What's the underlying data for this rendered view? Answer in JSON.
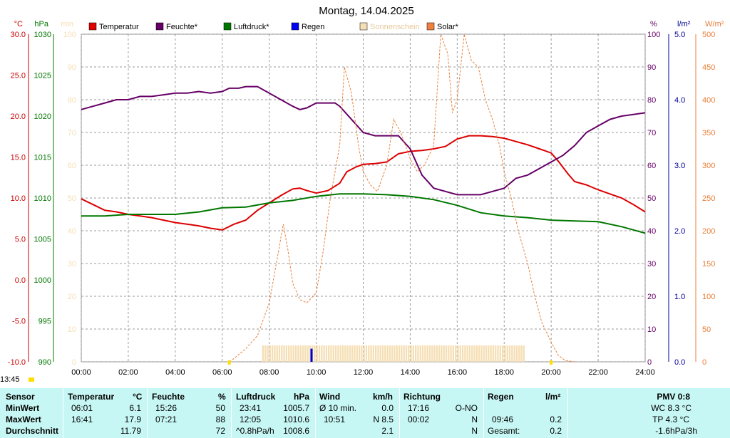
{
  "chart_data": {
    "type": "line",
    "title": "Montag, 14.04.2025",
    "x_ticks": [
      "00:00",
      "02:00",
      "04:00",
      "06:00",
      "08:00",
      "10:00",
      "12:00",
      "14:00",
      "16:00",
      "18:00",
      "20:00",
      "22:00",
      "24:00"
    ],
    "xlim": [
      0,
      24
    ],
    "grid": true,
    "legend_position": "top",
    "axes": {
      "temp": {
        "unit": "°C",
        "ylim": [
          -10,
          30
        ],
        "ticks": [
          "30.0",
          "25.0",
          "20.0",
          "15.0",
          "10.0",
          "5.0",
          "0.0",
          "-5.0",
          "-10.0"
        ],
        "color": "#cc0000"
      },
      "pressure": {
        "unit": "hPa",
        "ylim": [
          990,
          1030
        ],
        "ticks": [
          "1030",
          "1025",
          "1020",
          "1015",
          "1010",
          "1005",
          "1000",
          "995",
          "990"
        ],
        "color": "#007700"
      },
      "sunshine_min": {
        "unit": "min",
        "ylim": [
          0,
          100
        ],
        "ticks": [
          "100",
          "90",
          "80",
          "70",
          "60",
          "50",
          "40",
          "30",
          "20",
          "10",
          "0"
        ],
        "color": "#f5deb3"
      },
      "humidity": {
        "unit": "%",
        "ylim": [
          0,
          100
        ],
        "ticks": [
          "100",
          "90",
          "80",
          "70",
          "60",
          "50",
          "40",
          "30",
          "20",
          "10",
          "0"
        ],
        "color": "#660066"
      },
      "rain": {
        "unit": "l/m²",
        "ylim": [
          0,
          5
        ],
        "ticks": [
          "5.0",
          "4.0",
          "3.0",
          "2.0",
          "1.0",
          "0.0"
        ],
        "color": "#000099"
      },
      "solar": {
        "unit": "W/m²",
        "ylim": [
          0,
          500
        ],
        "ticks": [
          "500",
          "450",
          "400",
          "350",
          "300",
          "250",
          "200",
          "150",
          "100",
          "50",
          "0"
        ],
        "color": "#e8803a"
      }
    },
    "series": [
      {
        "name": "Temperatur",
        "key": "temp",
        "color": "#dd0000",
        "points": [
          [
            0,
            9.9
          ],
          [
            0.5,
            9.2
          ],
          [
            1,
            8.5
          ],
          [
            1.5,
            8.3
          ],
          [
            2,
            8.0
          ],
          [
            2.5,
            7.8
          ],
          [
            3,
            7.6
          ],
          [
            3.5,
            7.3
          ],
          [
            4,
            7.0
          ],
          [
            4.5,
            6.8
          ],
          [
            5,
            6.6
          ],
          [
            5.5,
            6.3
          ],
          [
            6,
            6.1
          ],
          [
            6.5,
            6.8
          ],
          [
            7,
            7.3
          ],
          [
            7.5,
            8.5
          ],
          [
            8,
            9.4
          ],
          [
            8.5,
            10.3
          ],
          [
            9,
            11.1
          ],
          [
            9.3,
            11.2
          ],
          [
            9.6,
            10.9
          ],
          [
            10,
            10.6
          ],
          [
            10.5,
            10.9
          ],
          [
            11,
            11.8
          ],
          [
            11.3,
            13.2
          ],
          [
            11.7,
            13.8
          ],
          [
            12,
            14.1
          ],
          [
            12.5,
            14.2
          ],
          [
            13,
            14.4
          ],
          [
            13.5,
            15.4
          ],
          [
            14,
            15.7
          ],
          [
            14.5,
            15.8
          ],
          [
            15,
            16.0
          ],
          [
            15.5,
            16.3
          ],
          [
            16,
            17.2
          ],
          [
            16.5,
            17.6
          ],
          [
            17,
            17.6
          ],
          [
            17.5,
            17.5
          ],
          [
            18,
            17.3
          ],
          [
            18.5,
            16.9
          ],
          [
            19,
            16.5
          ],
          [
            19.5,
            16.0
          ],
          [
            20,
            15.5
          ],
          [
            20.3,
            14.5
          ],
          [
            20.7,
            13.0
          ],
          [
            21,
            12.0
          ],
          [
            21.5,
            11.6
          ],
          [
            22,
            11.0
          ],
          [
            22.5,
            10.5
          ],
          [
            23,
            10.0
          ],
          [
            23.5,
            9.2
          ],
          [
            24,
            8.3
          ]
        ]
      },
      {
        "name": "Feuchte*",
        "key": "humidity",
        "color": "#660066",
        "points": [
          [
            0,
            77
          ],
          [
            0.5,
            78
          ],
          [
            1,
            79
          ],
          [
            1.5,
            80
          ],
          [
            2,
            80
          ],
          [
            2.5,
            81
          ],
          [
            3,
            81
          ],
          [
            3.5,
            81.5
          ],
          [
            4,
            82
          ],
          [
            4.5,
            82
          ],
          [
            5,
            82.5
          ],
          [
            5.5,
            82
          ],
          [
            6,
            82.5
          ],
          [
            6.3,
            83.5
          ],
          [
            6.7,
            83.5
          ],
          [
            7,
            84
          ],
          [
            7.5,
            84
          ],
          [
            8,
            82
          ],
          [
            8.5,
            80
          ],
          [
            9,
            78
          ],
          [
            9.3,
            77
          ],
          [
            9.6,
            77.5
          ],
          [
            10,
            79
          ],
          [
            10.5,
            79
          ],
          [
            10.8,
            79
          ],
          [
            11,
            78
          ],
          [
            11.5,
            74
          ],
          [
            12,
            70
          ],
          [
            12.5,
            69
          ],
          [
            13,
            69
          ],
          [
            13.5,
            69
          ],
          [
            14,
            65
          ],
          [
            14.5,
            57
          ],
          [
            15,
            53
          ],
          [
            15.5,
            52
          ],
          [
            16,
            51
          ],
          [
            16.5,
            51
          ],
          [
            17,
            51
          ],
          [
            17.5,
            52
          ],
          [
            18,
            53
          ],
          [
            18.5,
            56
          ],
          [
            19,
            57
          ],
          [
            19.5,
            59
          ],
          [
            20,
            61
          ],
          [
            20.5,
            63
          ],
          [
            21,
            66
          ],
          [
            21.5,
            70
          ],
          [
            22,
            72
          ],
          [
            22.5,
            74
          ],
          [
            23,
            75
          ],
          [
            23.5,
            75.5
          ],
          [
            24,
            76
          ]
        ]
      },
      {
        "name": "Luftdruck*",
        "key": "pressure",
        "color": "#007700",
        "points": [
          [
            0,
            1007.8
          ],
          [
            1,
            1007.8
          ],
          [
            2,
            1008.0
          ],
          [
            3,
            1008.0
          ],
          [
            4,
            1008.0
          ],
          [
            5,
            1008.3
          ],
          [
            6,
            1008.8
          ],
          [
            7,
            1008.9
          ],
          [
            8,
            1009.4
          ],
          [
            9,
            1009.7
          ],
          [
            10,
            1010.2
          ],
          [
            11,
            1010.5
          ],
          [
            12,
            1010.5
          ],
          [
            13,
            1010.4
          ],
          [
            14,
            1010.2
          ],
          [
            15,
            1009.8
          ],
          [
            16,
            1009.1
          ],
          [
            17,
            1008.2
          ],
          [
            18,
            1007.8
          ],
          [
            19,
            1007.6
          ],
          [
            20,
            1007.3
          ],
          [
            21,
            1007.2
          ],
          [
            22,
            1007.1
          ],
          [
            23,
            1006.5
          ],
          [
            24,
            1005.7
          ]
        ]
      },
      {
        "name": "Solar*",
        "key": "solar",
        "color": "#e8803a",
        "dashed": true,
        "points": [
          [
            6.3,
            0
          ],
          [
            6.5,
            5
          ],
          [
            7,
            20
          ],
          [
            7.5,
            40
          ],
          [
            8,
            90
          ],
          [
            8.3,
            150
          ],
          [
            8.6,
            210
          ],
          [
            8.8,
            170
          ],
          [
            9,
            120
          ],
          [
            9.3,
            95
          ],
          [
            9.6,
            90
          ],
          [
            10,
            105
          ],
          [
            10.3,
            170
          ],
          [
            10.6,
            250
          ],
          [
            11,
            330
          ],
          [
            11.2,
            450
          ],
          [
            11.5,
            410
          ],
          [
            11.8,
            330
          ],
          [
            12,
            290
          ],
          [
            12.3,
            270
          ],
          [
            12.6,
            260
          ],
          [
            13,
            300
          ],
          [
            13.3,
            370
          ],
          [
            13.6,
            350
          ],
          [
            14,
            310
          ],
          [
            14.3,
            290
          ],
          [
            14.6,
            300
          ],
          [
            15,
            330
          ],
          [
            15.3,
            500
          ],
          [
            15.6,
            470
          ],
          [
            15.8,
            380
          ],
          [
            16,
            400
          ],
          [
            16.3,
            500
          ],
          [
            16.6,
            460
          ],
          [
            16.9,
            450
          ],
          [
            17.2,
            400
          ],
          [
            17.5,
            370
          ],
          [
            17.8,
            330
          ],
          [
            18,
            290
          ],
          [
            18.3,
            250
          ],
          [
            18.6,
            200
          ],
          [
            19,
            150
          ],
          [
            19.3,
            100
          ],
          [
            19.6,
            60
          ],
          [
            20,
            30
          ],
          [
            20.3,
            10
          ],
          [
            20.6,
            2
          ],
          [
            21,
            0
          ]
        ]
      }
    ],
    "bars": [
      {
        "name": "Sonnenschein",
        "key": "sunshine_min",
        "color": "#f5deb3",
        "from": 7.7,
        "to": 18.9,
        "value": 5
      }
    ],
    "rain": [
      {
        "name": "Regen",
        "key": "rain",
        "color": "#0000cc",
        "x": 9.8,
        "value": 0.2
      }
    ],
    "legend": [
      {
        "label": "Temperatur",
        "color": "#dd0000"
      },
      {
        "label": "Feuchte*",
        "color": "#660066"
      },
      {
        "label": "Luftdruck*",
        "color": "#007700"
      },
      {
        "label": "Regen",
        "color": "#0000ee"
      },
      {
        "label": "Sonnenschein",
        "color": "#f5deb3"
      },
      {
        "label": "Solar*",
        "color": "#f08040"
      }
    ]
  },
  "time_label": "13:45",
  "stats": {
    "sensor": {
      "header": "Sensor",
      "min": "MinWert",
      "max": "MaxWert",
      "avg": "Durchschnitt"
    },
    "temp": {
      "header": "Temperatur",
      "unit": "°C",
      "min_time": "06:01",
      "min_val": "6.1",
      "max_time": "16:41",
      "max_val": "17.9",
      "avg_val": "11.79"
    },
    "humidity": {
      "header": "Feuchte",
      "unit": "%",
      "min_time": "15:26",
      "min_val": "50",
      "max_time": "07:21",
      "max_val": "88",
      "avg_val": "72"
    },
    "pressure": {
      "header": "Luftdruck",
      "unit": "hPa",
      "min_time": "23:41",
      "min_val": "1005.7",
      "max_time": "12:05",
      "max_val": "1010.6",
      "avg_label": "^0.8hPa/h",
      "avg_val": "1008.6"
    },
    "wind": {
      "header": "Wind",
      "unit": "km/h",
      "min_label": "Ø 10 min.",
      "min_val": "0.0",
      "max_time": "10:51",
      "max_val": "N 8.5",
      "avg_val": "2.1"
    },
    "direction": {
      "header": "Richtung",
      "min_time": "17:16",
      "min_val": "O-NO",
      "max_time": "00:02",
      "max_val": "N",
      "avg_val": "N"
    },
    "rain": {
      "header": "Regen",
      "unit": "l/m²",
      "max_time": "09:46",
      "max_val": "0.2",
      "total_label": "Gesamt:",
      "total_val": "0.2"
    },
    "pmv": {
      "header": "PMV 0:8",
      "wc": "WC 8.3 °C",
      "tp": "TP 4.3 °C",
      "trend": "-1.6hPa/3h"
    }
  }
}
